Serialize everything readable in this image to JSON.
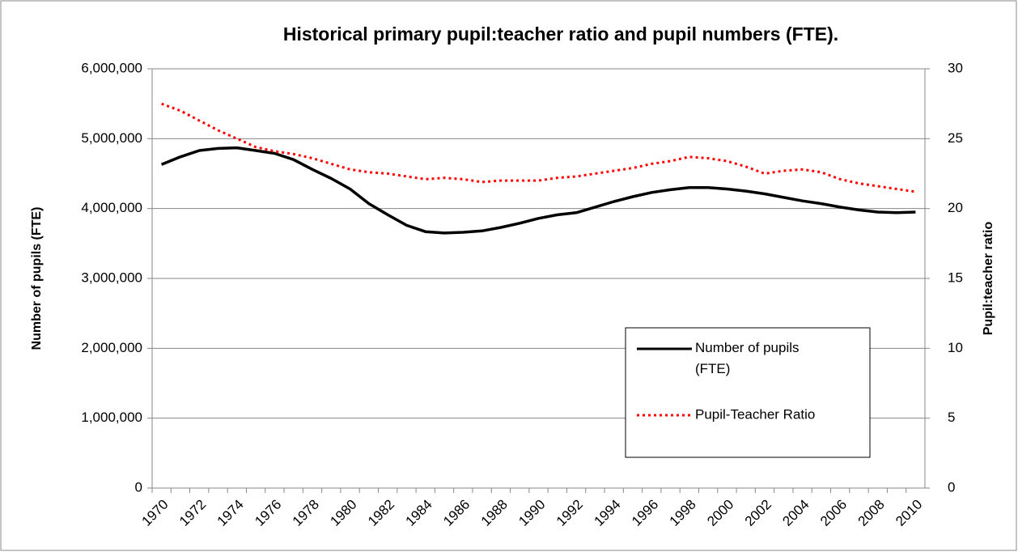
{
  "chart_data": {
    "type": "line",
    "title": "Historical primary pupil:teacher ratio and pupil numbers (FTE).",
    "y_label": "Number of pupils (FTE)",
    "y2_label": "Pupil:teacher ratio",
    "categories": [
      1970,
      null,
      1972,
      null,
      1974,
      null,
      1976,
      null,
      1978,
      null,
      1980,
      null,
      1982,
      null,
      1984,
      null,
      1986,
      null,
      1988,
      null,
      1990,
      null,
      1992,
      null,
      1994,
      null,
      1996,
      null,
      1998,
      null,
      2000,
      null,
      2002,
      null,
      2004,
      null,
      2006,
      null,
      2008,
      null,
      2010
    ],
    "series": [
      {
        "name": "Number of pupils (FTE)",
        "color": "#000000",
        "dash": "solid",
        "axis": "y",
        "values": [
          4630000,
          4740000,
          4830000,
          4860000,
          4870000,
          4830000,
          4790000,
          4700000,
          4560000,
          4430000,
          4280000,
          4070000,
          3910000,
          3760000,
          3670000,
          3650000,
          3660000,
          3680000,
          3730000,
          3790000,
          3860000,
          3910000,
          3940000,
          4020000,
          4100000,
          4170000,
          4230000,
          4270000,
          4300000,
          4300000,
          4280000,
          4250000,
          4210000,
          4160000,
          4110000,
          4070000,
          4020000,
          3980000,
          3950000,
          3940000,
          3950000
        ]
      },
      {
        "name": "Pupil-Teacher Ratio",
        "color": "#ff0000",
        "dash": "dotted",
        "axis": "y2",
        "values": [
          27.5,
          27.0,
          26.3,
          25.6,
          25.0,
          24.4,
          24.1,
          23.9,
          23.6,
          23.2,
          22.8,
          22.6,
          22.5,
          22.3,
          22.1,
          22.2,
          22.1,
          21.9,
          22.0,
          22.0,
          22.0,
          22.2,
          22.3,
          22.5,
          22.7,
          22.9,
          23.2,
          23.4,
          23.7,
          23.6,
          23.4,
          23.0,
          22.5,
          22.7,
          22.8,
          22.6,
          22.1,
          21.8,
          21.6,
          21.4,
          21.2
        ]
      }
    ],
    "ylim": [
      0,
      6000000
    ],
    "yticks": [
      {
        "value": 0,
        "label": "0"
      },
      {
        "value": 1000000,
        "label": "1,000,000"
      },
      {
        "value": 2000000,
        "label": "2,000,000"
      },
      {
        "value": 3000000,
        "label": "3,000,000"
      },
      {
        "value": 4000000,
        "label": "4,000,000"
      },
      {
        "value": 5000000,
        "label": "5,000,000"
      },
      {
        "value": 6000000,
        "label": "6,000,000"
      }
    ],
    "y2lim": [
      0,
      30
    ],
    "y2ticks": [
      0,
      5,
      10,
      15,
      20,
      25,
      30
    ],
    "grid": true,
    "legend": "lower right"
  }
}
